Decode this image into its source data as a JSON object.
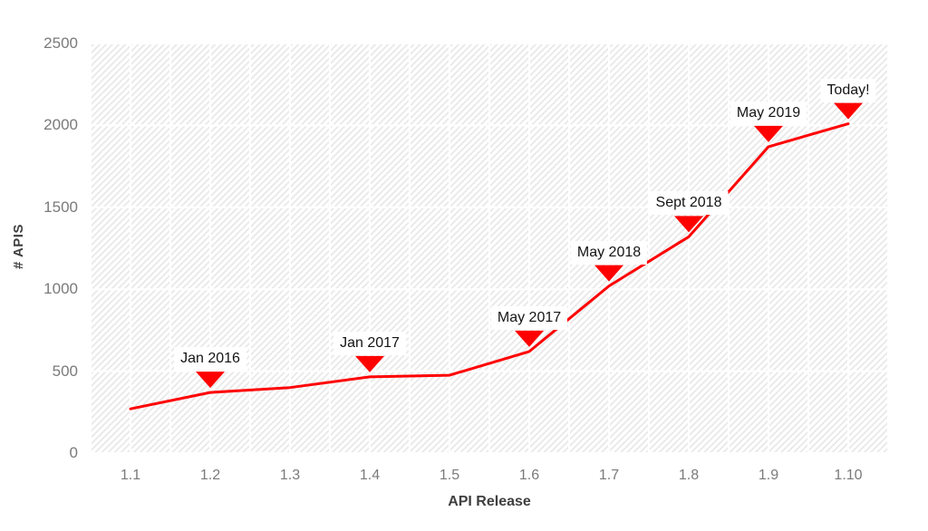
{
  "chart_data": {
    "type": "line",
    "title": "",
    "xlabel": "API Release",
    "ylabel": "# APIS",
    "categories": [
      "1.1",
      "1.2",
      "1.3",
      "1.4",
      "1.5",
      "1.6",
      "1.7",
      "1.8",
      "1.9",
      "1.10"
    ],
    "series": [
      {
        "name": "# APIs",
        "values": [
          270,
          370,
          400,
          465,
          475,
          620,
          1020,
          1320,
          1870,
          2010
        ]
      }
    ],
    "ylim": [
      0,
      2500
    ],
    "yticks": [
      0,
      500,
      1000,
      1500,
      2000,
      2500
    ],
    "grid": "on",
    "legend": "none",
    "marker": "triangle-down-on-annotated-points",
    "plot_background": "diagonal-hatch",
    "annotations": [
      {
        "category": "1.2",
        "label": "Jan 2016"
      },
      {
        "category": "1.4",
        "label": "Jan 2017"
      },
      {
        "category": "1.6",
        "label": "May 2017"
      },
      {
        "category": "1.7",
        "label": "May 2018"
      },
      {
        "category": "1.8",
        "label": "Sept 2018"
      },
      {
        "category": "1.9",
        "label": "May 2019"
      },
      {
        "category": "1.10",
        "label": "Today!"
      }
    ],
    "colors": {
      "line": "#ff0000",
      "marker": "#ff0000",
      "gridline": "#ffffff",
      "hatch_stripe": "#e7e7e7",
      "tick_text": "#7a7a7a",
      "axis_title_text": "#3f3f3f",
      "annotation_text": "#141414",
      "annotation_background": "#ffffff"
    }
  }
}
